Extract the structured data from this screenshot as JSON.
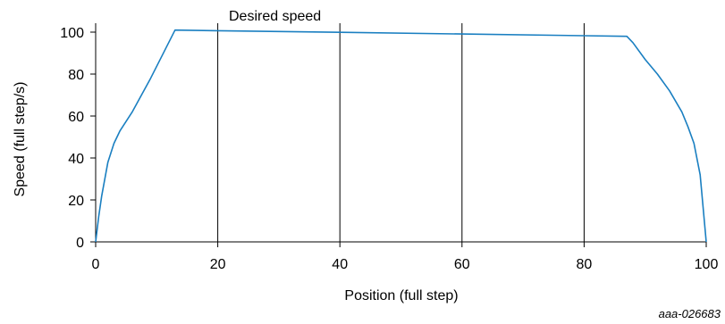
{
  "chart_data": {
    "type": "line",
    "title": "",
    "xlabel": "Position (full step)",
    "ylabel": "Speed (full step/s)",
    "xlim": [
      0,
      100
    ],
    "ylim": [
      0,
      100
    ],
    "xticks": [
      0,
      20,
      40,
      60,
      80,
      100
    ],
    "yticks": [
      0,
      20,
      40,
      60,
      80,
      100
    ],
    "grid": "vertical",
    "annotation": "Desired speed",
    "series": [
      {
        "color": "#1a7fc1",
        "x": [
          0,
          0.5,
          1,
          2,
          3,
          4,
          6,
          9,
          13,
          20,
          40,
          60,
          80,
          87,
          88,
          90,
          92,
          94,
          96,
          97,
          98,
          99,
          100
        ],
        "y": [
          0,
          12,
          22,
          38,
          47,
          53,
          62,
          78,
          101,
          100.7,
          99.9,
          99.1,
          98.3,
          98,
          95,
          87,
          80,
          72,
          62,
          55,
          47,
          32,
          0
        ]
      }
    ]
  },
  "figure_id": "aaa-026683"
}
